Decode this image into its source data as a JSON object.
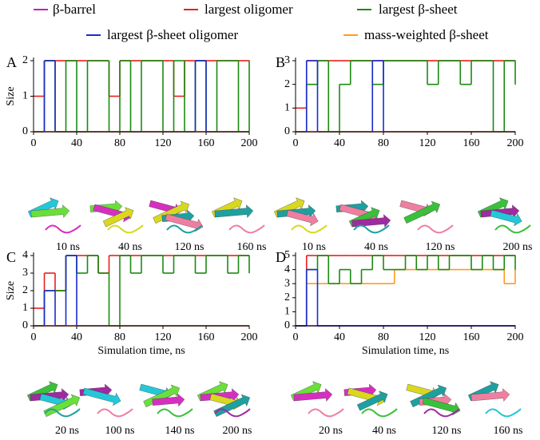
{
  "chart_data": [
    {
      "type": "line",
      "drawstyle": "steps-post",
      "panel_label": "A",
      "ylabel": "Size",
      "x": [
        0,
        10,
        20,
        30,
        40,
        50,
        60,
        70,
        80,
        90,
        100,
        110,
        120,
        130,
        140,
        150,
        160,
        170,
        180,
        190,
        200
      ],
      "xlim": [
        0,
        200
      ],
      "xticks": [
        0,
        40,
        80,
        120,
        160,
        200
      ],
      "ylim": [
        0,
        2
      ],
      "yticks": [
        0,
        1,
        2
      ],
      "series": [
        {
          "name": "β-barrel",
          "color": "#c01fc0",
          "values": [
            0,
            0,
            0,
            0,
            0,
            0,
            0,
            0,
            0,
            0,
            0,
            0,
            0,
            0,
            0,
            0,
            0,
            0,
            0,
            0,
            0
          ]
        },
        {
          "name": "largest oligomer",
          "color": "#e8201c",
          "values": [
            1,
            2,
            2,
            2,
            2,
            2,
            2,
            1,
            2,
            2,
            2,
            2,
            2,
            1,
            2,
            2,
            2,
            2,
            2,
            2,
            2
          ]
        },
        {
          "name": "largest β-sheet",
          "color": "#1a8a10",
          "values": [
            0,
            2,
            0,
            2,
            0,
            2,
            2,
            0,
            2,
            0,
            2,
            2,
            0,
            2,
            0,
            2,
            0,
            2,
            2,
            0,
            2
          ]
        },
        {
          "name": "largest β-sheet oligomer",
          "color": "#1a2ccc",
          "values": [
            0,
            2,
            0,
            0,
            0,
            0,
            0,
            0,
            0,
            0,
            0,
            0,
            0,
            0,
            0,
            2,
            0,
            0,
            0,
            0,
            0
          ]
        },
        {
          "name": "mass-weighted β-sheet",
          "color": "#ff9a20",
          "values": [
            0,
            0,
            0,
            0,
            0,
            0,
            0,
            0,
            0,
            0,
            0,
            0,
            0,
            0,
            0,
            0,
            0,
            0,
            0,
            0,
            0
          ]
        }
      ],
      "snapshots": [
        "10 ns",
        "40 ns",
        "120 ns",
        "160 ns"
      ]
    },
    {
      "type": "line",
      "drawstyle": "steps-post",
      "panel_label": "B",
      "x": [
        0,
        10,
        20,
        30,
        40,
        50,
        60,
        70,
        80,
        90,
        100,
        110,
        120,
        130,
        140,
        150,
        160,
        170,
        180,
        190,
        200
      ],
      "xlim": [
        0,
        200
      ],
      "xticks": [
        0,
        40,
        80,
        120,
        160,
        200
      ],
      "ylim": [
        0,
        3
      ],
      "yticks": [
        0,
        1,
        2,
        3
      ],
      "series": [
        {
          "name": "β-barrel",
          "color": "#c01fc0",
          "values": [
            0,
            0,
            0,
            0,
            0,
            0,
            0,
            0,
            0,
            0,
            0,
            0,
            0,
            0,
            0,
            0,
            0,
            0,
            0,
            0,
            0
          ]
        },
        {
          "name": "largest oligomer",
          "color": "#e8201c",
          "values": [
            1,
            3,
            3,
            3,
            3,
            3,
            3,
            3,
            3,
            3,
            3,
            3,
            3,
            3,
            3,
            3,
            3,
            3,
            3,
            3,
            3
          ]
        },
        {
          "name": "largest β-sheet",
          "color": "#1a8a10",
          "values": [
            0,
            2,
            3,
            0,
            2,
            3,
            3,
            2,
            3,
            3,
            3,
            3,
            2,
            3,
            3,
            2,
            3,
            3,
            0,
            3,
            2
          ]
        },
        {
          "name": "largest β-sheet oligomer",
          "color": "#1a2ccc",
          "values": [
            0,
            3,
            0,
            0,
            0,
            0,
            0,
            3,
            0,
            0,
            0,
            0,
            0,
            0,
            0,
            0,
            0,
            0,
            0,
            0,
            0
          ]
        },
        {
          "name": "mass-weighted β-sheet",
          "color": "#ff9a20",
          "values": [
            0,
            0,
            0,
            0,
            0,
            0,
            0,
            0,
            0,
            0,
            0,
            0,
            0,
            0,
            0,
            0,
            0,
            0,
            0,
            0,
            0
          ]
        }
      ],
      "snapshots": [
        "10 ns",
        "40 ns",
        "120 ns",
        "200 ns"
      ]
    },
    {
      "type": "line",
      "drawstyle": "steps-post",
      "panel_label": "C",
      "ylabel": "Size",
      "xlabel": "Simulation time, ns",
      "x": [
        0,
        10,
        20,
        30,
        40,
        50,
        60,
        70,
        80,
        90,
        100,
        110,
        120,
        130,
        140,
        150,
        160,
        170,
        180,
        190,
        200
      ],
      "xlim": [
        0,
        200
      ],
      "xticks": [
        0,
        40,
        80,
        120,
        160,
        200
      ],
      "ylim": [
        0,
        4
      ],
      "yticks": [
        0,
        1,
        2,
        3,
        4
      ],
      "series": [
        {
          "name": "β-barrel",
          "color": "#c01fc0",
          "values": [
            0,
            0,
            0,
            0,
            0,
            0,
            0,
            0,
            0,
            0,
            0,
            0,
            0,
            0,
            0,
            0,
            0,
            0,
            0,
            0,
            0
          ]
        },
        {
          "name": "largest oligomer",
          "color": "#e8201c",
          "values": [
            1,
            3,
            2,
            4,
            4,
            4,
            3,
            4,
            4,
            4,
            4,
            4,
            4,
            4,
            4,
            4,
            4,
            4,
            4,
            4,
            4
          ]
        },
        {
          "name": "largest β-sheet",
          "color": "#1a8a10",
          "values": [
            0,
            2,
            2,
            4,
            3,
            4,
            3,
            0,
            4,
            3,
            4,
            4,
            3,
            4,
            4,
            3,
            4,
            4,
            3,
            4,
            3
          ]
        },
        {
          "name": "largest β-sheet oligomer",
          "color": "#1a2ccc",
          "values": [
            0,
            2,
            0,
            4,
            0,
            0,
            0,
            0,
            0,
            0,
            0,
            0,
            0,
            0,
            0,
            0,
            0,
            0,
            0,
            0,
            0
          ]
        },
        {
          "name": "mass-weighted β-sheet",
          "color": "#ff9a20",
          "values": [
            0,
            0,
            0,
            0,
            0,
            0,
            0,
            0,
            0,
            0,
            0,
            0,
            0,
            0,
            0,
            0,
            0,
            0,
            0,
            0,
            0
          ]
        }
      ],
      "snapshots": [
        "20 ns",
        "100 ns",
        "140 ns",
        "200 ns"
      ]
    },
    {
      "type": "line",
      "drawstyle": "steps-post",
      "panel_label": "D",
      "xlabel": "Simulation time, ns",
      "x": [
        0,
        10,
        20,
        30,
        40,
        50,
        60,
        70,
        80,
        90,
        100,
        110,
        120,
        130,
        140,
        150,
        160,
        170,
        180,
        190,
        200
      ],
      "xlim": [
        0,
        200
      ],
      "xticks": [
        0,
        40,
        80,
        120,
        160,
        200
      ],
      "ylim": [
        0,
        5
      ],
      "yticks": [
        0,
        1,
        2,
        3,
        4,
        5
      ],
      "series": [
        {
          "name": "β-barrel",
          "color": "#c01fc0",
          "values": [
            0,
            0,
            0,
            0,
            0,
            0,
            0,
            0,
            0,
            0,
            0,
            0,
            0,
            0,
            0,
            0,
            0,
            0,
            0,
            0,
            0
          ]
        },
        {
          "name": "largest oligomer",
          "color": "#e8201c",
          "values": [
            0,
            5,
            5,
            5,
            5,
            5,
            5,
            5,
            5,
            5,
            5,
            5,
            5,
            5,
            5,
            5,
            5,
            5,
            5,
            5,
            5
          ]
        },
        {
          "name": "mass-weighted β-sheet",
          "color": "#ff9a20",
          "values": [
            0,
            3,
            3,
            3,
            3,
            3,
            3,
            3,
            3,
            4,
            4,
            4,
            4,
            4,
            4,
            4,
            4,
            4,
            4,
            3,
            4
          ]
        },
        {
          "name": "largest β-sheet",
          "color": "#1a8a10",
          "values": [
            0,
            4,
            5,
            3,
            4,
            3,
            4,
            5,
            4,
            4,
            5,
            4,
            5,
            4,
            5,
            5,
            4,
            5,
            4,
            5,
            4
          ]
        },
        {
          "name": "largest β-sheet oligomer",
          "color": "#1a2ccc",
          "values": [
            0,
            4,
            0,
            0,
            0,
            0,
            0,
            0,
            0,
            0,
            0,
            0,
            0,
            0,
            0,
            0,
            0,
            0,
            0,
            0,
            0
          ]
        }
      ],
      "snapshots": [
        "20 ns",
        "40 ns",
        "120 ns",
        "160 ns"
      ]
    }
  ]
}
